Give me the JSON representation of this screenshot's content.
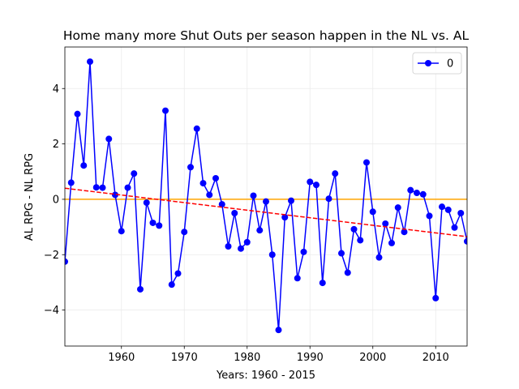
{
  "chart_data": {
    "type": "line",
    "title": "Home many more Shut Outs per season happen in the NL vs. AL",
    "xlabel": "Years:   1960 - 2015",
    "ylabel": "AL RPG - NL RPG",
    "xlim": [
      1951,
      2015
    ],
    "ylim": [
      -5.3,
      5.5
    ],
    "xticks": [
      1960,
      1970,
      1980,
      1990,
      2000,
      2010
    ],
    "yticks": [
      -4,
      -2,
      0,
      2,
      4
    ],
    "grid": true,
    "legend_position": "top-right",
    "series": [
      {
        "name": "0",
        "color": "#0000ff",
        "marker": "circle",
        "x": [
          1951,
          1952,
          1953,
          1954,
          1955,
          1956,
          1957,
          1958,
          1959,
          1960,
          1961,
          1962,
          1963,
          1964,
          1965,
          1966,
          1967,
          1968,
          1969,
          1970,
          1971,
          1972,
          1973,
          1974,
          1975,
          1976,
          1977,
          1978,
          1979,
          1980,
          1981,
          1982,
          1983,
          1984,
          1985,
          1986,
          1987,
          1988,
          1989,
          1990,
          1991,
          1992,
          1993,
          1994,
          1995,
          1996,
          1997,
          1998,
          1999,
          2000,
          2001,
          2002,
          2003,
          2004,
          2005,
          2006,
          2007,
          2008,
          2009,
          2010,
          2011,
          2012,
          2013,
          2014,
          2015
        ],
        "y": [
          -2.25,
          0.6,
          3.08,
          1.22,
          4.97,
          0.43,
          0.42,
          2.18,
          0.16,
          -1.15,
          0.42,
          0.93,
          -3.25,
          -0.12,
          -0.85,
          -0.95,
          3.2,
          -3.08,
          -2.68,
          -1.18,
          1.16,
          2.55,
          0.58,
          0.16,
          0.76,
          -0.18,
          -1.7,
          -0.5,
          -1.78,
          -1.55,
          0.13,
          -1.12,
          -0.08,
          -2.0,
          -4.72,
          -0.65,
          -0.05,
          -2.85,
          -1.9,
          0.63,
          0.52,
          -3.02,
          0.02,
          0.93,
          -1.95,
          -2.65,
          -1.08,
          -1.48,
          1.33,
          -0.45,
          -2.1,
          -0.88,
          -1.58,
          -0.3,
          -1.18,
          0.33,
          0.23,
          0.18,
          -0.6,
          -3.57,
          -0.27,
          -0.38,
          -1.02,
          -0.5,
          -1.52
        ]
      }
    ],
    "reference_line": {
      "y": 0,
      "color": "#ffa500"
    },
    "trend_line": {
      "x": [
        1951,
        2015
      ],
      "y": [
        0.4,
        -1.35
      ],
      "color": "#ff0000",
      "style": "dashed"
    }
  }
}
